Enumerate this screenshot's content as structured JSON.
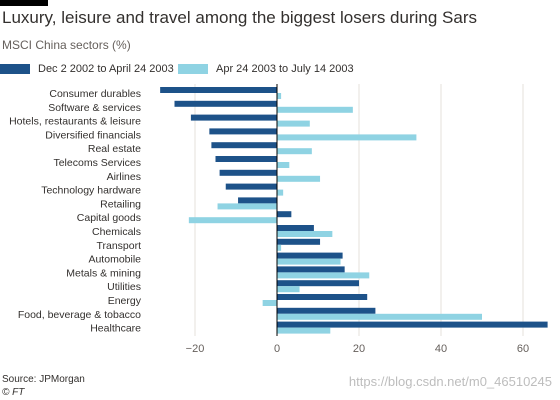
{
  "header": {
    "title": "Luxury, leisure and travel among the biggest losers during Sars",
    "subtitle": "MSCI China sectors (%)"
  },
  "footer": {
    "source": "Source: JPMorgan",
    "credit": "© FT",
    "watermark": "https://blog.csdn.net/m0_46510245"
  },
  "colors": {
    "series_dark": "#1d5289",
    "series_light": "#8fd3e3",
    "zero_line": "#000000",
    "grid": "#e6e0db",
    "label_text": "#33302e"
  },
  "chart_data": {
    "type": "bar",
    "orientation": "horizontal",
    "title": "Luxury, leisure and travel among the biggest losers during Sars",
    "subtitle": "MSCI China sectors (%)",
    "categories": [
      "Consumer durables",
      "Software & services",
      "Hotels, restaurants & leisure",
      "Diversified financials",
      "Real estate",
      "Telecoms Services",
      "Airlines",
      "Technology hardware",
      "Retailing",
      "Capital goods",
      "Chemicals",
      "Transport",
      "Automobile",
      "Metals & mining",
      "Utilities",
      "Energy",
      "Food, beverage & tobacco",
      "Healthcare"
    ],
    "series": [
      {
        "name": "Dec 2 2002 to April 24 2003",
        "color": "#1d5289",
        "values": [
          -28.5,
          -25,
          -21,
          -16.5,
          -16,
          -15,
          -14,
          -12.5,
          -9.5,
          3.5,
          9,
          10.5,
          16,
          16.5,
          20,
          22,
          24,
          66
        ]
      },
      {
        "name": "Apr 24 2003 to July 14 2003",
        "color": "#8fd3e3",
        "values": [
          1,
          18.5,
          8,
          34,
          8.5,
          3,
          10.5,
          1.5,
          -14.5,
          -21.5,
          13.5,
          1,
          15.5,
          22.5,
          5.5,
          -3.5,
          50,
          13
        ]
      }
    ],
    "xlim": [
      -29,
      66
    ],
    "xticks": [
      -20,
      0,
      20,
      40,
      60
    ],
    "xlabel": "",
    "ylabel": "",
    "grid": "vertical",
    "legend_position": "top-left"
  }
}
